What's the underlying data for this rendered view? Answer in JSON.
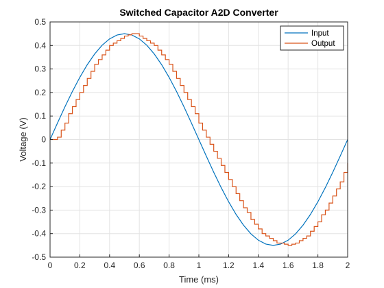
{
  "chart_data": {
    "type": "line",
    "title": "Switched Capacitor A2D Converter",
    "xlabel": "Time (ms)",
    "ylabel": "Voltage (V)",
    "xlim": [
      0,
      2
    ],
    "ylim": [
      -0.5,
      0.5
    ],
    "x_ticks": [
      0,
      0.2,
      0.4,
      0.6,
      0.8,
      1,
      1.2,
      1.4,
      1.6,
      1.8,
      2
    ],
    "y_ticks": [
      -0.5,
      -0.4,
      -0.3,
      -0.2,
      -0.1,
      0,
      0.1,
      0.2,
      0.3,
      0.4,
      0.5
    ],
    "x_tick_labels": [
      "0",
      "0.2",
      "0.4",
      "0.6",
      "0.8",
      "1",
      "1.2",
      "1.4",
      "1.6",
      "1.8",
      "2"
    ],
    "y_tick_labels": [
      "-0.5",
      "-0.4",
      "-0.3",
      "-0.2",
      "-0.1",
      "0",
      "0.1",
      "0.2",
      "0.3",
      "0.4",
      "0.5"
    ],
    "grid": true,
    "legend_position": "top-right",
    "series": [
      {
        "name": "Input",
        "color": "#0072BD",
        "x": [
          0,
          0.05,
          0.1,
          0.15,
          0.2,
          0.25,
          0.3,
          0.35,
          0.4,
          0.45,
          0.5,
          0.55,
          0.6,
          0.65,
          0.7,
          0.75,
          0.8,
          0.85,
          0.9,
          0.95,
          1,
          1.05,
          1.1,
          1.15,
          1.2,
          1.25,
          1.3,
          1.35,
          1.4,
          1.45,
          1.5,
          1.55,
          1.6,
          1.65,
          1.7,
          1.75,
          1.8,
          1.85,
          1.9,
          1.95,
          2
        ],
        "y": [
          0,
          0.0704,
          0.1391,
          0.2043,
          0.2645,
          0.3182,
          0.3641,
          0.401,
          0.428,
          0.4444,
          0.45,
          0.4444,
          0.428,
          0.401,
          0.3641,
          0.3182,
          0.2645,
          0.2043,
          0.1391,
          0.0704,
          0,
          -0.0704,
          -0.1391,
          -0.2043,
          -0.2645,
          -0.3182,
          -0.3641,
          -0.401,
          -0.428,
          -0.4444,
          -0.45,
          -0.4444,
          -0.428,
          -0.401,
          -0.3641,
          -0.3182,
          -0.2645,
          -0.2043,
          -0.1391,
          -0.0704,
          0
        ]
      },
      {
        "name": "Output",
        "color": "#D95319",
        "style": "staircase",
        "x": [
          0,
          0.05,
          0.075,
          0.1,
          0.125,
          0.15,
          0.175,
          0.2,
          0.225,
          0.25,
          0.275,
          0.3,
          0.325,
          0.35,
          0.375,
          0.4,
          0.425,
          0.45,
          0.475,
          0.5,
          0.525,
          0.55,
          0.575,
          0.6,
          0.625,
          0.65,
          0.675,
          0.7,
          0.725,
          0.75,
          0.775,
          0.8,
          0.825,
          0.85,
          0.875,
          0.9,
          0.925,
          0.95,
          0.975,
          1,
          1.025,
          1.05,
          1.075,
          1.1,
          1.125,
          1.15,
          1.175,
          1.2,
          1.225,
          1.25,
          1.275,
          1.3,
          1.325,
          1.35,
          1.375,
          1.4,
          1.425,
          1.45,
          1.475,
          1.5,
          1.525,
          1.55,
          1.575,
          1.6,
          1.625,
          1.65,
          1.675,
          1.7,
          1.725,
          1.75,
          1.775,
          1.8,
          1.825,
          1.85,
          1.875,
          1.9,
          1.925,
          1.95,
          1.975,
          2
        ],
        "y": [
          0,
          0.01,
          0.04,
          0.07,
          0.11,
          0.14,
          0.17,
          0.2,
          0.23,
          0.26,
          0.29,
          0.32,
          0.34,
          0.36,
          0.38,
          0.4,
          0.41,
          0.42,
          0.43,
          0.44,
          0.445,
          0.45,
          0.45,
          0.44,
          0.43,
          0.42,
          0.41,
          0.4,
          0.38,
          0.36,
          0.34,
          0.32,
          0.29,
          0.26,
          0.23,
          0.2,
          0.17,
          0.14,
          0.11,
          0.07,
          0.04,
          0.01,
          -0.02,
          -0.05,
          -0.08,
          -0.11,
          -0.14,
          -0.17,
          -0.2,
          -0.23,
          -0.26,
          -0.29,
          -0.31,
          -0.34,
          -0.36,
          -0.38,
          -0.4,
          -0.41,
          -0.42,
          -0.43,
          -0.44,
          -0.44,
          -0.445,
          -0.45,
          -0.445,
          -0.44,
          -0.43,
          -0.42,
          -0.41,
          -0.39,
          -0.37,
          -0.35,
          -0.32,
          -0.3,
          -0.27,
          -0.24,
          -0.21,
          -0.18,
          -0.14,
          -0.1
        ]
      }
    ]
  }
}
